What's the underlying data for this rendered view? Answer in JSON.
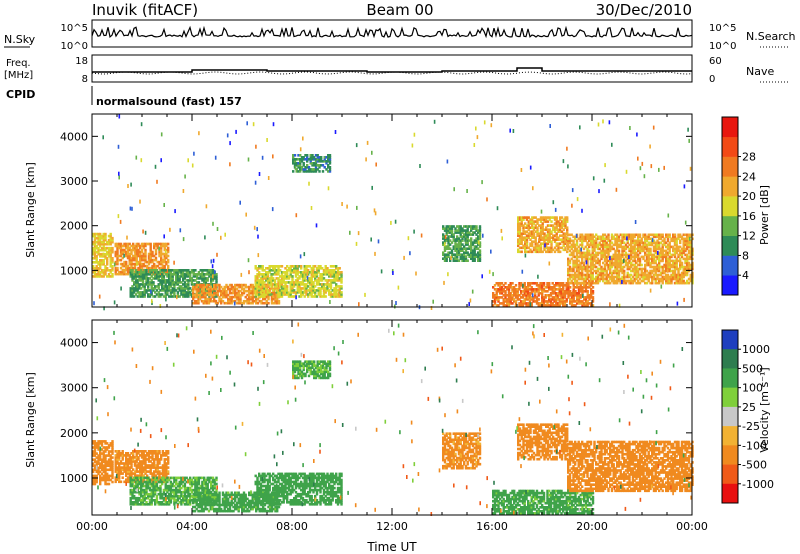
{
  "header": {
    "station": "Inuvik (fitACF)",
    "beam": "Beam 00",
    "date": "30/Dec/2010"
  },
  "summary_panels": {
    "nsky": {
      "label": "N.Sky",
      "left_ticks": [
        "10^5",
        "10^0"
      ],
      "right_ticks": [
        "10^5",
        "10^0"
      ],
      "right_label": "N.Search",
      "right_legend_line": "dotted"
    },
    "freq": {
      "label_line1": "Freq.",
      "label_line2": "[MHz]",
      "left_ticks": [
        "18",
        "8"
      ],
      "right_ticks": [
        "60",
        "0"
      ],
      "right_label": "Nave",
      "right_legend_line": "dotted"
    },
    "cpid": {
      "label": "CPID",
      "text": "normalsound (fast) 157"
    }
  },
  "chart_data": [
    {
      "type": "heatmap",
      "title": "",
      "quantity": "Power",
      "xlabel": "",
      "ylabel": "Slant Range [km]",
      "xlim": [
        "00:00",
        "24:00"
      ],
      "ylim": [
        180,
        4500
      ],
      "x_ticks": [
        "00:00",
        "04:00",
        "08:00",
        "12:00",
        "16:00",
        "20:00",
        "00:00"
      ],
      "y_ticks": [
        "1000",
        "2000",
        "3000",
        "4000"
      ],
      "colorbar": {
        "label": "Power [dB]",
        "ticks": [
          "4",
          "8",
          "12",
          "16",
          "20",
          "24",
          "28"
        ],
        "colors": [
          "#1a1aff",
          "#2e5fd6",
          "#2e8b57",
          "#66b24a",
          "#d9d92e",
          "#f0a92e",
          "#f07a20",
          "#f24a16",
          "#e8170f"
        ]
      },
      "regions": [
        {
          "t0": 0.0,
          "t1": 0.8,
          "r0": 850,
          "r1": 1800,
          "value": 20
        },
        {
          "t0": 0.9,
          "t1": 3.0,
          "r0": 900,
          "r1": 1600,
          "value": 24
        },
        {
          "t0": 1.5,
          "t1": 5.0,
          "r0": 400,
          "r1": 1000,
          "value": 12
        },
        {
          "t0": 4.0,
          "t1": 7.5,
          "r0": 250,
          "r1": 700,
          "value": 24
        },
        {
          "t0": 6.5,
          "t1": 10.0,
          "r0": 400,
          "r1": 1100,
          "value": 18
        },
        {
          "t0": 8.0,
          "t1": 9.5,
          "r0": 3200,
          "r1": 3600,
          "value": 10
        },
        {
          "t0": 14.0,
          "t1": 15.5,
          "r0": 1200,
          "r1": 2000,
          "value": 12
        },
        {
          "t0": 16.0,
          "t1": 20.0,
          "r0": 200,
          "r1": 700,
          "value": 26
        },
        {
          "t0": 17.0,
          "t1": 19.0,
          "r0": 1400,
          "r1": 2200,
          "value": 22
        },
        {
          "t0": 19.0,
          "t1": 24.0,
          "r0": 700,
          "r1": 1800,
          "value": 22
        }
      ]
    },
    {
      "type": "heatmap",
      "title": "",
      "quantity": "Velocity",
      "xlabel": "Time UT",
      "ylabel": "Slant Range [km]",
      "xlim": [
        "00:00",
        "24:00"
      ],
      "ylim": [
        180,
        4500
      ],
      "x_ticks": [
        "00:00",
        "04:00",
        "08:00",
        "12:00",
        "16:00",
        "20:00",
        "00:00"
      ],
      "y_ticks": [
        "1000",
        "2000",
        "3000",
        "4000"
      ],
      "colorbar": {
        "label": "Velocity [m s⁻¹]",
        "ticks": [
          "1000",
          "500",
          "100",
          "25",
          "-25",
          "-100",
          "-500",
          "-1000"
        ],
        "colors": [
          "#1f3fbf",
          "#2e7d4f",
          "#3fa34a",
          "#7fcf3a",
          "#c8c8c8",
          "#f2b233",
          "#f08a1f",
          "#f05a18",
          "#e81010"
        ]
      },
      "regions": [
        {
          "t0": 0.0,
          "t1": 0.8,
          "r0": 850,
          "r1": 1800,
          "value": -300
        },
        {
          "t0": 0.9,
          "t1": 3.0,
          "r0": 900,
          "r1": 1600,
          "value": -200
        },
        {
          "t0": 1.5,
          "t1": 5.0,
          "r0": 400,
          "r1": 1000,
          "value": 150
        },
        {
          "t0": 4.0,
          "t1": 7.5,
          "r0": 250,
          "r1": 700,
          "value": 200
        },
        {
          "t0": 6.5,
          "t1": 10.0,
          "r0": 400,
          "r1": 1100,
          "value": 300
        },
        {
          "t0": 8.0,
          "t1": 9.5,
          "r0": 3200,
          "r1": 3600,
          "value": 150
        },
        {
          "t0": 14.0,
          "t1": 15.5,
          "r0": 1200,
          "r1": 2000,
          "value": -200
        },
        {
          "t0": 16.0,
          "t1": 20.0,
          "r0": 200,
          "r1": 700,
          "value": 200
        },
        {
          "t0": 17.0,
          "t1": 19.0,
          "r0": 1400,
          "r1": 2200,
          "value": -300
        },
        {
          "t0": 19.0,
          "t1": 24.0,
          "r0": 700,
          "r1": 1800,
          "value": -250
        }
      ]
    }
  ]
}
